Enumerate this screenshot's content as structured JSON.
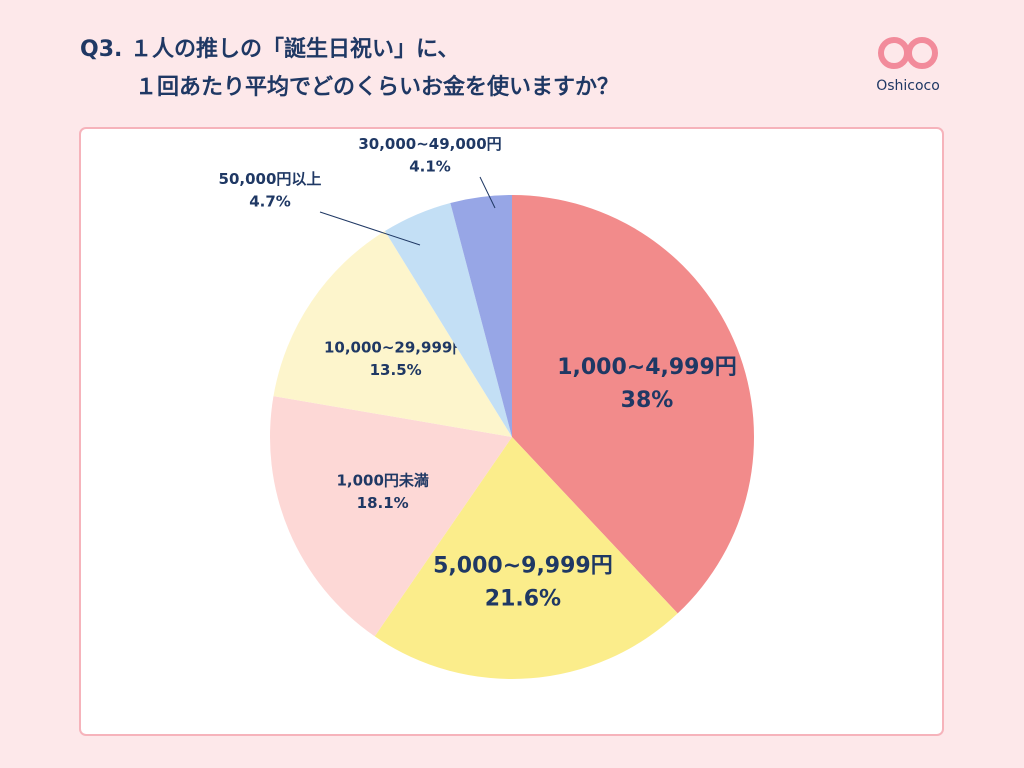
{
  "chart_data": {
    "type": "pie",
    "title": [
      "Q3. １人の推しの「誕生日祝い」に、",
      "１回あたり平均でどのくらいお金を使いますか？"
    ],
    "logo": "Oshicoco",
    "categories": [
      "1,000~4,999円",
      "5,000~9,999円",
      "1,000円未満",
      "10,000~29,999円",
      "50,000円以上",
      "30,000~49,000円"
    ],
    "values": [
      38,
      21.6,
      18.1,
      13.5,
      4.7,
      4.1
    ],
    "value_labels": [
      "38%",
      "21.6%",
      "18.1%",
      "13.5%",
      "4.7%",
      "4.1%"
    ],
    "colors": [
      "#f28b8b",
      "#fbed8b",
      "#fdd8d6",
      "#fdf5cc",
      "#c3dff5",
      "#97a6e6"
    ]
  }
}
